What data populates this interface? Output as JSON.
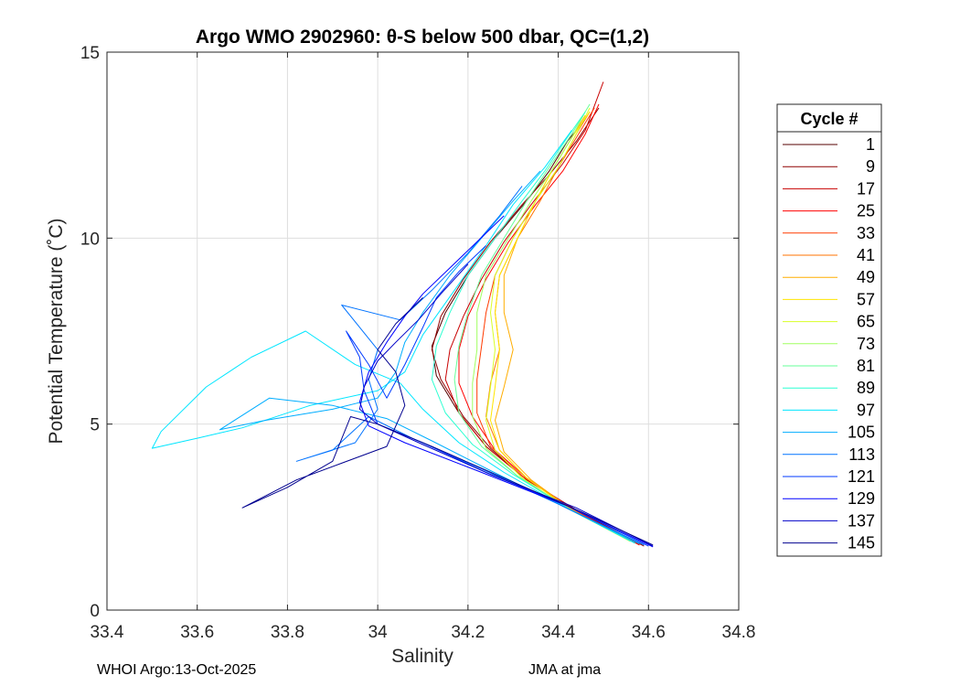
{
  "chart_data": {
    "type": "line",
    "title": "Argo WMO 2902960: θ-S below 500 dbar,  QC=(1,2)",
    "xlabel": "Salinity",
    "ylabel": "Potential Temperature (˚C)",
    "xlim": [
      33.4,
      34.8
    ],
    "ylim": [
      0,
      15
    ],
    "xticks": [
      33.4,
      33.6,
      33.8,
      34,
      34.2,
      34.4,
      34.6,
      34.8
    ],
    "xtick_labels": [
      "33.4",
      "33.6",
      "33.8",
      "34",
      "34.2",
      "34.4",
      "34.6",
      "34.8"
    ],
    "yticks": [
      0,
      5,
      10,
      15
    ],
    "ytick_labels": [
      "0",
      "5",
      "10",
      "15"
    ],
    "grid": true,
    "legend_title": "Cycle #",
    "legend_position": "outside-right",
    "series": [
      {
        "name": "1",
        "color": "#550000",
        "profile": [
          [
            34.58,
            1.75
          ],
          [
            34.45,
            2.6
          ],
          [
            34.32,
            3.6
          ],
          [
            34.24,
            4.4
          ],
          [
            34.18,
            5.3
          ],
          [
            34.13,
            6.3
          ],
          [
            34.12,
            7.1
          ],
          [
            34.15,
            8.0
          ],
          [
            34.2,
            9.0
          ],
          [
            34.26,
            10.0
          ],
          [
            34.33,
            11.0
          ],
          [
            34.38,
            11.8
          ],
          [
            34.42,
            12.6
          ],
          [
            34.46,
            13.2
          ]
        ]
      },
      {
        "name": "9",
        "color": "#8f0000",
        "profile": [
          [
            34.59,
            1.72
          ],
          [
            34.46,
            2.55
          ],
          [
            34.33,
            3.5
          ],
          [
            34.25,
            4.35
          ],
          [
            34.19,
            5.2
          ],
          [
            34.14,
            6.2
          ],
          [
            34.12,
            7.0
          ],
          [
            34.14,
            7.9
          ],
          [
            34.19,
            8.9
          ],
          [
            34.25,
            9.9
          ],
          [
            34.32,
            10.9
          ],
          [
            34.38,
            11.7
          ],
          [
            34.44,
            12.6
          ],
          [
            34.49,
            13.5
          ]
        ]
      },
      {
        "name": "17",
        "color": "#c80000",
        "profile": [
          [
            34.58,
            1.76
          ],
          [
            34.45,
            2.6
          ],
          [
            34.32,
            3.6
          ],
          [
            34.24,
            4.4
          ],
          [
            34.18,
            5.3
          ],
          [
            34.15,
            6.2
          ],
          [
            34.16,
            7.0
          ],
          [
            34.19,
            7.9
          ],
          [
            34.23,
            8.9
          ],
          [
            34.28,
            9.9
          ],
          [
            34.34,
            10.9
          ],
          [
            34.41,
            12.0
          ],
          [
            34.46,
            12.9
          ],
          [
            34.5,
            14.2
          ]
        ]
      },
      {
        "name": "25",
        "color": "#ff0000",
        "profile": [
          [
            34.58,
            1.75
          ],
          [
            34.44,
            2.65
          ],
          [
            34.33,
            3.55
          ],
          [
            34.26,
            4.3
          ],
          [
            34.21,
            5.2
          ],
          [
            34.18,
            6.1
          ],
          [
            34.18,
            7.0
          ],
          [
            34.2,
            7.9
          ],
          [
            34.24,
            8.9
          ],
          [
            34.29,
            9.9
          ],
          [
            34.35,
            10.9
          ],
          [
            34.41,
            11.8
          ],
          [
            34.46,
            12.8
          ],
          [
            34.49,
            13.6
          ]
        ]
      },
      {
        "name": "33",
        "color": "#ff3a00",
        "profile": [
          [
            34.57,
            1.8
          ],
          [
            34.44,
            2.65
          ],
          [
            34.32,
            3.6
          ],
          [
            34.25,
            4.4
          ],
          [
            34.22,
            5.3
          ],
          [
            34.22,
            6.2
          ],
          [
            34.23,
            7.1
          ],
          [
            34.24,
            8.0
          ],
          [
            34.26,
            9.0
          ],
          [
            34.3,
            10.0
          ],
          [
            34.35,
            11.0
          ],
          [
            34.4,
            11.9
          ],
          [
            34.45,
            12.9
          ],
          [
            34.48,
            13.5
          ]
        ]
      },
      {
        "name": "41",
        "color": "#ff7300",
        "profile": [
          [
            34.57,
            1.8
          ],
          [
            34.43,
            2.7
          ],
          [
            34.33,
            3.55
          ],
          [
            34.27,
            4.3
          ],
          [
            34.24,
            5.2
          ],
          [
            34.25,
            6.1
          ],
          [
            34.27,
            7.0
          ],
          [
            34.26,
            8.0
          ],
          [
            34.27,
            9.0
          ],
          [
            34.31,
            10.0
          ],
          [
            34.36,
            11.0
          ],
          [
            34.4,
            11.9
          ],
          [
            34.44,
            12.8
          ],
          [
            34.47,
            13.4
          ]
        ]
      },
      {
        "name": "49",
        "color": "#ffad00",
        "profile": [
          [
            34.56,
            1.85
          ],
          [
            34.43,
            2.7
          ],
          [
            34.34,
            3.5
          ],
          [
            34.28,
            4.25
          ],
          [
            34.26,
            5.1
          ],
          [
            34.28,
            6.0
          ],
          [
            34.3,
            7.0
          ],
          [
            34.28,
            8.0
          ],
          [
            34.28,
            9.0
          ],
          [
            34.31,
            10.0
          ],
          [
            34.35,
            11.0
          ],
          [
            34.39,
            11.9
          ],
          [
            34.43,
            12.7
          ],
          [
            34.46,
            13.3
          ]
        ]
      },
      {
        "name": "57",
        "color": "#ffe600",
        "profile": [
          [
            34.56,
            1.85
          ],
          [
            34.42,
            2.75
          ],
          [
            34.33,
            3.55
          ],
          [
            34.27,
            4.3
          ],
          [
            34.25,
            5.1
          ],
          [
            34.26,
            6.0
          ],
          [
            34.27,
            7.0
          ],
          [
            34.26,
            8.0
          ],
          [
            34.27,
            9.0
          ],
          [
            34.31,
            10.0
          ],
          [
            34.35,
            11.0
          ],
          [
            34.39,
            11.9
          ],
          [
            34.43,
            12.7
          ],
          [
            34.47,
            13.4
          ]
        ]
      },
      {
        "name": "65",
        "color": "#d9ff26",
        "profile": [
          [
            34.56,
            1.85
          ],
          [
            34.42,
            2.75
          ],
          [
            34.32,
            3.55
          ],
          [
            34.26,
            4.3
          ],
          [
            34.24,
            5.1
          ],
          [
            34.25,
            6.0
          ],
          [
            34.26,
            7.0
          ],
          [
            34.25,
            8.0
          ],
          [
            34.26,
            9.0
          ],
          [
            34.3,
            10.0
          ],
          [
            34.35,
            11.0
          ],
          [
            34.4,
            11.9
          ],
          [
            34.44,
            12.8
          ],
          [
            34.47,
            13.5
          ]
        ]
      },
      {
        "name": "73",
        "color": "#a0ff60",
        "profile": [
          [
            34.56,
            1.85
          ],
          [
            34.41,
            2.8
          ],
          [
            34.31,
            3.6
          ],
          [
            34.24,
            4.35
          ],
          [
            34.21,
            5.2
          ],
          [
            34.21,
            6.1
          ],
          [
            34.22,
            7.0
          ],
          [
            34.22,
            8.0
          ],
          [
            34.24,
            9.0
          ],
          [
            34.29,
            10.0
          ],
          [
            34.34,
            11.0
          ],
          [
            34.39,
            11.9
          ],
          [
            34.43,
            12.7
          ],
          [
            34.46,
            13.4
          ]
        ]
      },
      {
        "name": "81",
        "color": "#66ff99",
        "profile": [
          [
            34.57,
            1.8
          ],
          [
            34.42,
            2.75
          ],
          [
            34.31,
            3.6
          ],
          [
            34.23,
            4.4
          ],
          [
            34.18,
            5.3
          ],
          [
            34.17,
            6.2
          ],
          [
            34.18,
            7.1
          ],
          [
            34.2,
            8.0
          ],
          [
            34.23,
            9.0
          ],
          [
            34.28,
            10.0
          ],
          [
            34.33,
            11.0
          ],
          [
            34.38,
            11.9
          ],
          [
            34.43,
            12.8
          ],
          [
            34.47,
            13.6
          ]
        ]
      },
      {
        "name": "89",
        "color": "#2dffd2",
        "profile": [
          [
            34.57,
            1.8
          ],
          [
            34.42,
            2.75
          ],
          [
            34.3,
            3.65
          ],
          [
            34.21,
            4.45
          ],
          [
            34.15,
            5.3
          ],
          [
            34.12,
            6.2
          ],
          [
            34.13,
            7.1
          ],
          [
            34.16,
            8.0
          ],
          [
            34.2,
            9.0
          ],
          [
            34.26,
            10.0
          ],
          [
            34.32,
            11.0
          ],
          [
            34.37,
            11.8
          ],
          [
            34.42,
            12.7
          ],
          [
            34.46,
            13.4
          ]
        ]
      },
      {
        "name": "97",
        "color": "#00e6ff",
        "profile": [
          [
            34.57,
            1.8
          ],
          [
            34.41,
            2.8
          ],
          [
            34.28,
            3.7
          ],
          [
            34.18,
            4.5
          ],
          [
            34.1,
            5.4
          ],
          [
            34.05,
            6.1
          ],
          [
            33.95,
            6.6
          ],
          [
            33.84,
            7.5
          ],
          [
            33.72,
            6.8
          ],
          [
            33.62,
            6.0
          ],
          [
            33.52,
            4.8
          ],
          [
            33.5,
            4.35
          ],
          [
            33.6,
            4.62
          ],
          [
            33.7,
            4.9
          ],
          [
            33.85,
            5.5
          ],
          [
            34.0,
            5.9
          ],
          [
            34.06,
            6.4
          ],
          [
            34.1,
            7.4
          ],
          [
            34.17,
            8.6
          ],
          [
            34.24,
            9.8
          ],
          [
            34.3,
            10.9
          ],
          [
            34.37,
            11.9
          ],
          [
            34.43,
            12.9
          ]
        ]
      },
      {
        "name": "105",
        "color": "#00adff",
        "profile": [
          [
            34.58,
            1.78
          ],
          [
            34.4,
            2.85
          ],
          [
            34.25,
            3.75
          ],
          [
            34.12,
            4.55
          ],
          [
            34.02,
            5.15
          ],
          [
            33.9,
            5.5
          ],
          [
            33.76,
            5.7
          ],
          [
            33.65,
            4.85
          ],
          [
            33.75,
            5.1
          ],
          [
            33.9,
            5.4
          ],
          [
            34.0,
            5.7
          ],
          [
            34.04,
            6.4
          ],
          [
            34.06,
            7.2
          ],
          [
            34.1,
            8.0
          ],
          [
            34.16,
            9.0
          ],
          [
            34.23,
            10.0
          ],
          [
            34.3,
            11.0
          ],
          [
            34.36,
            11.8
          ]
        ]
      },
      {
        "name": "113",
        "color": "#0073ff",
        "profile": [
          [
            34.59,
            1.75
          ],
          [
            34.4,
            2.85
          ],
          [
            34.23,
            3.8
          ],
          [
            34.08,
            4.6
          ],
          [
            33.98,
            5.2
          ],
          [
            33.9,
            4.3
          ],
          [
            33.82,
            4.0
          ],
          [
            33.95,
            4.5
          ],
          [
            34.0,
            5.4
          ],
          [
            33.98,
            6.2
          ],
          [
            34.0,
            7.0
          ],
          [
            33.92,
            8.2
          ],
          [
            34.05,
            7.8
          ],
          [
            34.12,
            8.6
          ],
          [
            34.2,
            9.6
          ],
          [
            34.27,
            10.6
          ],
          [
            34.32,
            11.4
          ]
        ]
      },
      {
        "name": "121",
        "color": "#003aff",
        "profile": [
          [
            34.6,
            1.72
          ],
          [
            34.42,
            2.8
          ],
          [
            34.24,
            3.7
          ],
          [
            34.1,
            4.5
          ],
          [
            34.0,
            5.0
          ],
          [
            33.97,
            5.9
          ],
          [
            33.96,
            6.8
          ],
          [
            33.93,
            7.5
          ],
          [
            33.98,
            6.6
          ],
          [
            34.02,
            5.7
          ],
          [
            34.06,
            6.6
          ],
          [
            34.1,
            7.6
          ],
          [
            34.13,
            8.4
          ],
          [
            34.18,
            9.1
          ],
          [
            34.24,
            9.8
          ]
        ]
      },
      {
        "name": "129",
        "color": "#0000ff",
        "profile": [
          [
            34.61,
            1.7
          ],
          [
            34.42,
            2.8
          ],
          [
            34.22,
            3.75
          ],
          [
            34.06,
            4.5
          ],
          [
            33.98,
            4.95
          ],
          [
            33.96,
            5.6
          ],
          [
            33.98,
            6.4
          ],
          [
            34.02,
            7.2
          ],
          [
            34.06,
            7.9
          ],
          [
            34.1,
            8.5
          ],
          [
            34.16,
            9.2
          ],
          [
            34.22,
            9.9
          ],
          [
            34.28,
            10.6
          ]
        ]
      },
      {
        "name": "137",
        "color": "#0000c8",
        "profile": [
          [
            34.61,
            1.72
          ],
          [
            34.44,
            2.75
          ],
          [
            34.25,
            3.65
          ],
          [
            34.1,
            4.45
          ],
          [
            34.0,
            5.0
          ],
          [
            33.96,
            5.4
          ],
          [
            33.97,
            6.0
          ],
          [
            34.0,
            6.7
          ],
          [
            34.04,
            7.2
          ],
          [
            34.09,
            7.8
          ],
          [
            34.14,
            8.5
          ],
          [
            34.2,
            9.3
          ]
        ]
      },
      {
        "name": "145",
        "color": "#00008f",
        "profile": [
          [
            34.61,
            1.75
          ],
          [
            34.44,
            2.7
          ],
          [
            34.27,
            3.6
          ],
          [
            34.12,
            4.4
          ],
          [
            34.0,
            5.0
          ],
          [
            33.94,
            5.2
          ],
          [
            33.9,
            4.0
          ],
          [
            33.8,
            3.3
          ],
          [
            33.7,
            2.75
          ],
          [
            33.82,
            3.5
          ],
          [
            33.92,
            3.95
          ],
          [
            34.02,
            4.4
          ],
          [
            34.06,
            5.5
          ],
          [
            34.04,
            6.4
          ],
          [
            34.0,
            7.0
          ],
          [
            34.04,
            7.7
          ],
          [
            34.1,
            8.4
          ]
        ]
      }
    ]
  },
  "footer": {
    "left": "WHOI Argo:13-Oct-2025",
    "right": "JMA at jma"
  }
}
